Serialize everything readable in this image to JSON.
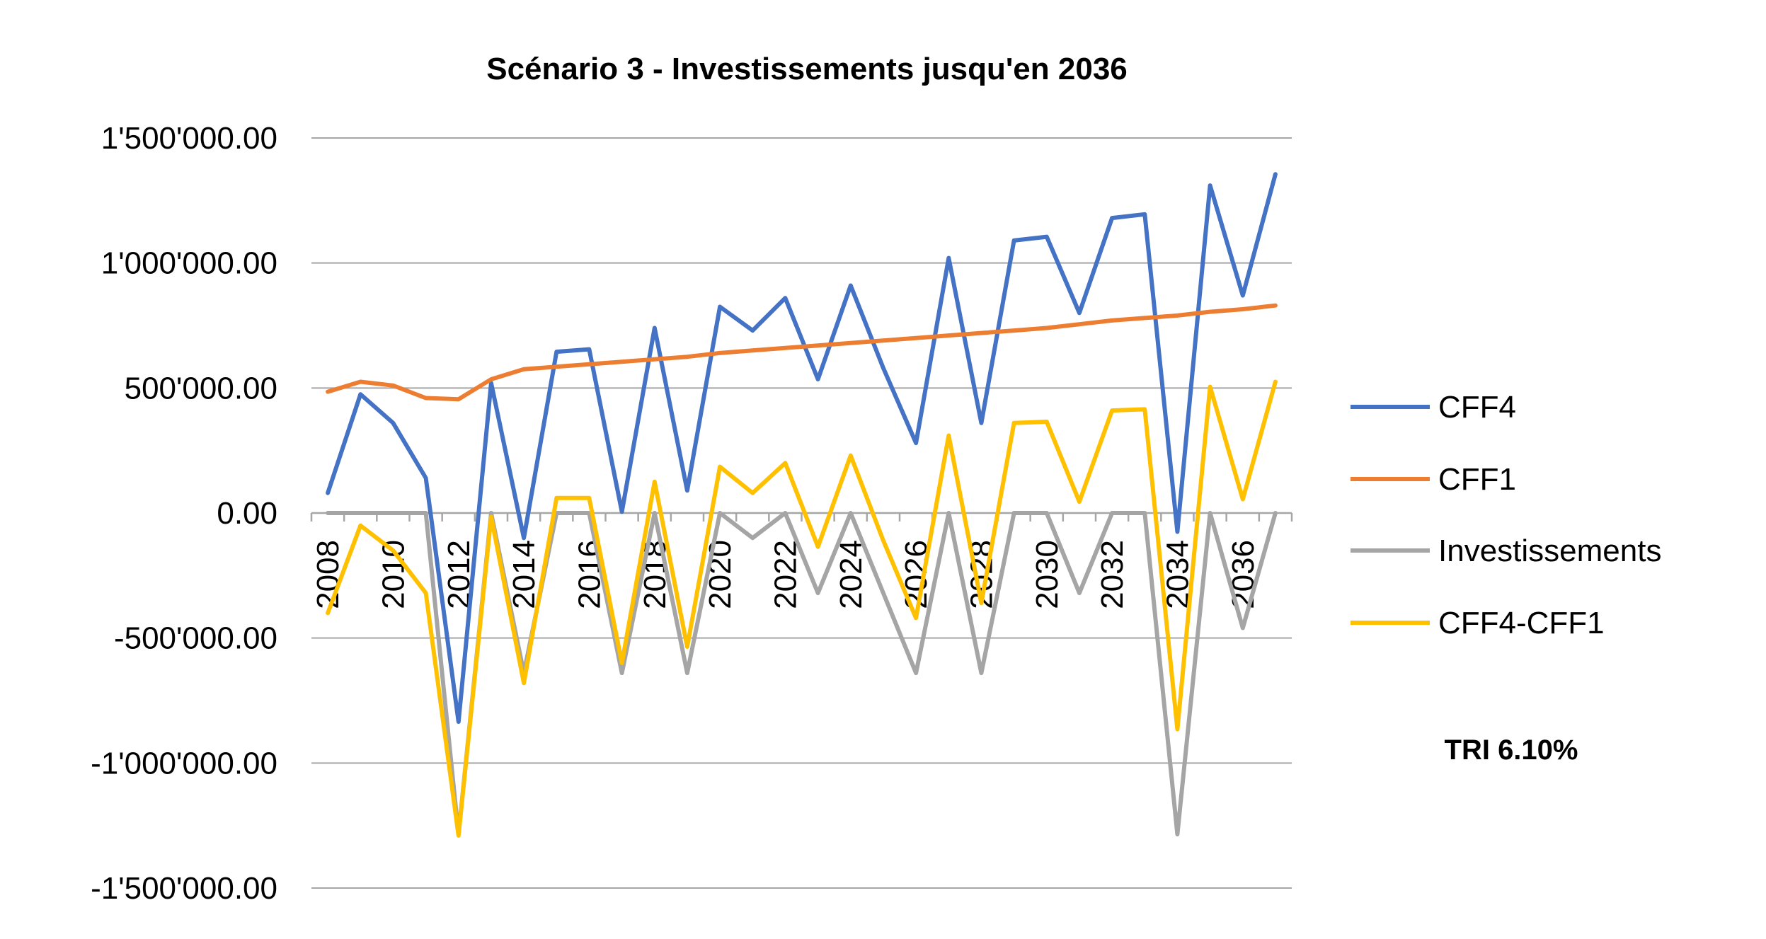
{
  "chart_data": {
    "type": "line",
    "title": "Scénario 3 - Investissements jusqu'en 2036",
    "xlabel": "",
    "ylabel": "",
    "ylim": [
      -1500000,
      1500000
    ],
    "yticks": [
      1500000,
      1000000,
      500000,
      0,
      -500000,
      -1000000,
      -1500000
    ],
    "ytick_labels": [
      "1'500'000.00",
      "1'000'000.00",
      "500'000.00",
      "0.00",
      "-500'000.00",
      "-1'000'000.00",
      "-1'500'000.00"
    ],
    "x": [
      2008,
      2009,
      2010,
      2011,
      2012,
      2013,
      2014,
      2015,
      2016,
      2017,
      2018,
      2019,
      2020,
      2021,
      2022,
      2023,
      2024,
      2025,
      2026,
      2027,
      2028,
      2029,
      2030,
      2031,
      2032,
      2033,
      2034,
      2035,
      2036,
      2037
    ],
    "xtick_labels": [
      "2008",
      "2010",
      "2012",
      "2014",
      "2016",
      "2018",
      "2020",
      "2022",
      "2024",
      "2026",
      "2028",
      "2030",
      "2032",
      "2034",
      "2036"
    ],
    "grid": true,
    "legend_position": "right",
    "series": [
      {
        "name": "CFF4",
        "color": "#4472C4",
        "values": [
          80000,
          475000,
          360000,
          140000,
          -835000,
          520000,
          -100000,
          645000,
          655000,
          5000,
          740000,
          90000,
          825000,
          730000,
          860000,
          535000,
          910000,
          580000,
          280000,
          1020000,
          360000,
          1090000,
          1105000,
          800000,
          1180000,
          1195000,
          -75000,
          1310000,
          870000,
          1355000
        ]
      },
      {
        "name": "CFF1",
        "color": "#ED7D31",
        "values": [
          485000,
          525000,
          510000,
          460000,
          455000,
          535000,
          575000,
          585000,
          595000,
          605000,
          615000,
          625000,
          640000,
          650000,
          660000,
          670000,
          680000,
          690000,
          700000,
          710000,
          720000,
          730000,
          740000,
          755000,
          770000,
          780000,
          790000,
          805000,
          815000,
          830000
        ]
      },
      {
        "name": "Investissements",
        "color": "#A5A5A5",
        "values": [
          0,
          0,
          0,
          0,
          -1285000,
          0,
          -640000,
          0,
          0,
          -640000,
          0,
          -640000,
          0,
          -100000,
          0,
          -320000,
          0,
          -320000,
          -640000,
          0,
          -640000,
          0,
          0,
          -320000,
          0,
          0,
          -1285000,
          0,
          -460000,
          0
        ]
      },
      {
        "name": "CFF4-CFF1",
        "color": "#FFC000",
        "values": [
          -400000,
          -50000,
          -150000,
          -320000,
          -1290000,
          -15000,
          -680000,
          60000,
          60000,
          -600000,
          125000,
          -535000,
          185000,
          80000,
          200000,
          -135000,
          230000,
          -110000,
          -420000,
          310000,
          -360000,
          360000,
          365000,
          45000,
          410000,
          415000,
          -865000,
          505000,
          55000,
          525000
        ]
      }
    ],
    "annotation": "TRI 6.10%"
  }
}
